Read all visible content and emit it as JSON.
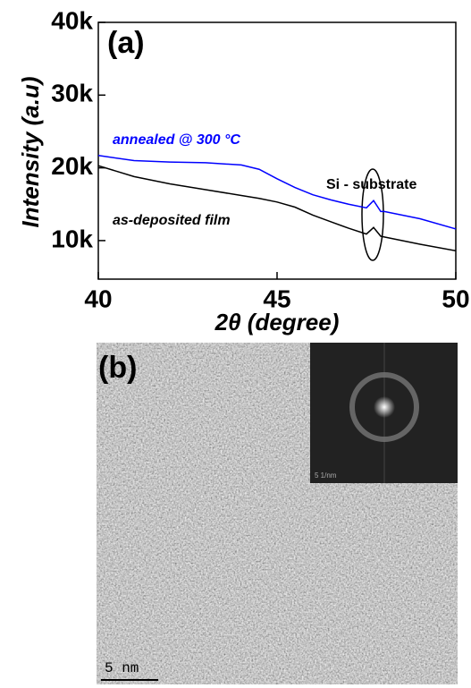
{
  "chart_data": {
    "type": "line",
    "panel_label": "(a)",
    "x_label": "2θ (degree)",
    "y_label": "Intensity (a.u)",
    "x": [
      40,
      41,
      42,
      43,
      44,
      44.5,
      45,
      45.5,
      46,
      46.5,
      47,
      47.5,
      47.7,
      47.9,
      48,
      49,
      50
    ],
    "series": [
      {
        "name": "annealed @ 300 °C",
        "color": "#0000ff",
        "values": [
          21700,
          21000,
          20800,
          20700,
          20400,
          19800,
          18500,
          17300,
          16300,
          15600,
          15000,
          14500,
          15500,
          14000,
          14000,
          13000,
          11600
        ]
      },
      {
        "name": "as-deposited film",
        "color": "#000000",
        "values": [
          20300,
          18800,
          17800,
          17000,
          16200,
          15800,
          15300,
          14600,
          13500,
          12600,
          11700,
          10900,
          11800,
          10600,
          10500,
          9500,
          8600
        ]
      }
    ],
    "annotations": [
      "Si - substrate"
    ],
    "xlim": [
      40,
      50
    ],
    "xticks": [
      40,
      45,
      50
    ],
    "ylim": [
      4700,
      40000
    ],
    "yticks": [
      {
        "value": 10000,
        "label": "10k"
      },
      {
        "value": 20000,
        "label": "20k"
      },
      {
        "value": 30000,
        "label": "30k"
      },
      {
        "value": 40000,
        "label": "40k"
      }
    ]
  },
  "image": {
    "panel_label": "(b)",
    "scale_bar": "5 nm",
    "inset_scale_bar": "5 1/nm"
  }
}
